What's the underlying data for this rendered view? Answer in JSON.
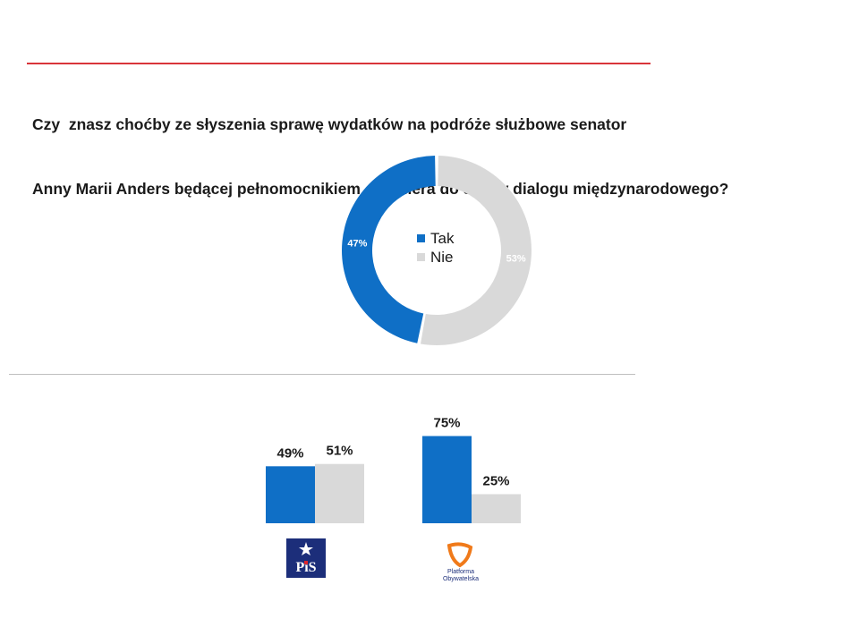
{
  "question": {
    "line1": "Czy  znasz choćby ze słyszenia sprawę wydatków na podróże służbowe senator",
    "line2": "Anny Marii Anders będącej pełnomocnikiem  premiera do spraw dialogu międzynarodowego?"
  },
  "colors": {
    "tak": "#0f6fc6",
    "nie": "#d9d9d9",
    "accent_rule": "#d9343a"
  },
  "chart_data": [
    {
      "type": "pie",
      "subtype": "donut",
      "categories": [
        "Tak",
        "Nie"
      ],
      "values": [
        47,
        53
      ],
      "labels": [
        "47%",
        "53%"
      ],
      "legend": {
        "position": "center",
        "entries": [
          "Tak",
          "Nie"
        ]
      }
    },
    {
      "type": "bar",
      "groups": [
        {
          "logo": "PiS",
          "values": [
            49,
            51
          ],
          "labels": [
            "49%",
            "51%"
          ]
        },
        {
          "logo": "Platforma Obywatelska",
          "values": [
            75,
            25
          ],
          "labels": [
            "75%",
            "25%"
          ]
        }
      ],
      "series": [
        {
          "name": "Tak"
        },
        {
          "name": "Nie"
        }
      ],
      "ylim": [
        0,
        100
      ]
    }
  ],
  "logos": {
    "pis_text": "PiS",
    "po_line1": "Platforma",
    "po_line2": "Obywatelska"
  }
}
